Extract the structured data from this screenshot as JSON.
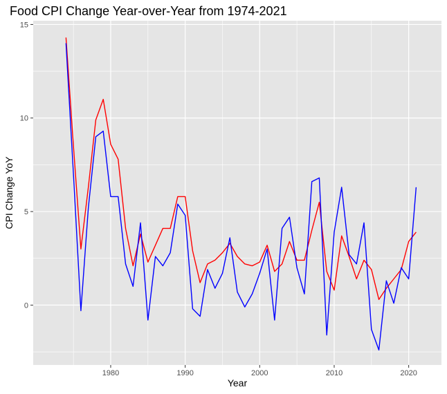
{
  "chart_data": {
    "type": "line",
    "title": "Food CPI Change Year-over-Year from 1974-2021",
    "xlabel": "Year",
    "ylabel": "CPI Change YoY",
    "xlim": [
      1969.6,
      2024.4
    ],
    "ylim": [
      -3.2,
      15.2
    ],
    "x_ticks": [
      1980,
      1990,
      2000,
      2010,
      2020
    ],
    "y_ticks": [
      0,
      5,
      10,
      15
    ],
    "grid": true,
    "legend": "none",
    "panel_color": "#e5e5e5",
    "grid_color": "#ffffff",
    "x": [
      1974,
      1975,
      1976,
      1977,
      1978,
      1979,
      1980,
      1981,
      1982,
      1983,
      1984,
      1985,
      1986,
      1987,
      1988,
      1989,
      1990,
      1991,
      1992,
      1993,
      1994,
      1995,
      1996,
      1997,
      1998,
      1999,
      2000,
      2001,
      2002,
      2003,
      2004,
      2005,
      2006,
      2007,
      2008,
      2009,
      2010,
      2011,
      2012,
      2013,
      2014,
      2015,
      2016,
      2017,
      2018,
      2019,
      2020,
      2021
    ],
    "series": [
      {
        "color": "#ff0000",
        "values": [
          14.3,
          8.5,
          3.0,
          6.3,
          9.9,
          11.0,
          8.6,
          7.8,
          4.1,
          2.1,
          3.8,
          2.3,
          3.2,
          4.1,
          4.1,
          5.8,
          5.8,
          2.9,
          1.2,
          2.2,
          2.4,
          2.8,
          3.3,
          2.6,
          2.2,
          2.1,
          2.3,
          3.2,
          1.8,
          2.2,
          3.4,
          2.4,
          2.4,
          4.0,
          5.5,
          1.8,
          0.8,
          3.7,
          2.6,
          1.4,
          2.4,
          1.9,
          0.3,
          0.9,
          1.4,
          1.9,
          3.4,
          3.9
        ]
      },
      {
        "color": "#0000ff",
        "values": [
          14.0,
          7.0,
          -0.3,
          5.2,
          9.0,
          9.3,
          5.8,
          5.8,
          2.2,
          1.0,
          4.4,
          -0.8,
          2.6,
          2.1,
          2.8,
          5.4,
          4.8,
          -0.2,
          -0.6,
          1.9,
          0.9,
          1.7,
          3.6,
          0.7,
          -0.1,
          0.6,
          1.7,
          3.0,
          -0.8,
          4.1,
          4.7,
          2.0,
          0.6,
          6.6,
          6.8,
          -1.6,
          3.9,
          6.3,
          2.7,
          2.2,
          4.4,
          -1.3,
          -2.4,
          1.3,
          0.1,
          2.0,
          1.4,
          6.3
        ]
      }
    ]
  }
}
